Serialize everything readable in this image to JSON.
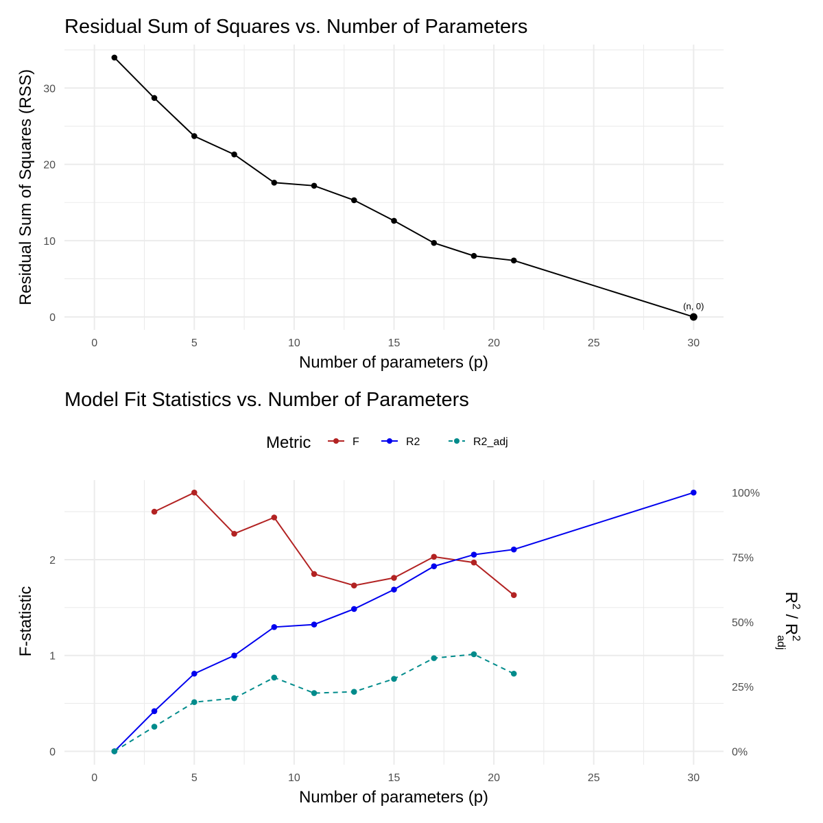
{
  "chart_data": [
    {
      "type": "line",
      "title": "Residual Sum of Squares vs. Number of Parameters",
      "xlabel": "Number of parameters (p)",
      "ylabel": "Residual Sum of Squares (RSS)",
      "xlim": [
        -1.5,
        31.5
      ],
      "ylim": [
        -1.7,
        35.7
      ],
      "x_ticks": [
        0,
        5,
        10,
        15,
        20,
        25,
        30
      ],
      "y_ticks": [
        0,
        10,
        20,
        30
      ],
      "grid": true,
      "series": [
        {
          "color": "#000000",
          "x": [
            1,
            3,
            5,
            7,
            9,
            11,
            13,
            15,
            17,
            19,
            21,
            30
          ],
          "y": [
            34.0,
            28.7,
            23.7,
            21.3,
            17.6,
            17.2,
            15.3,
            12.6,
            9.7,
            8.0,
            7.4,
            0.0
          ]
        }
      ],
      "annotations": [
        {
          "text": "(n, 0)",
          "x": 30,
          "y": 0
        }
      ]
    },
    {
      "type": "line",
      "title": "Model Fit Statistics vs. Number of Parameters",
      "xlabel": "Number of parameters (p)",
      "ylabel": "F-statistic",
      "y2label_base": "R",
      "y2label_sup1": "2",
      "y2label_mid": " / R",
      "y2label_sup2": "2",
      "y2label_sub": "adj",
      "xlim": [
        -1.5,
        31.5
      ],
      "ylim": [
        -0.14,
        2.83
      ],
      "x_ticks": [
        0,
        5,
        10,
        15,
        20,
        25,
        30
      ],
      "y_ticks": [
        0,
        1,
        2
      ],
      "y2_ticks": [
        "0%",
        "25%",
        "50%",
        "75%",
        "100%"
      ],
      "y2_scale_max": 2.7,
      "grid": true,
      "legend": {
        "title": "Metric",
        "position": "top",
        "entries": [
          "F",
          "R2",
          "R2_adj"
        ]
      },
      "series": [
        {
          "name": "F",
          "color": "#b22222",
          "dashed": false,
          "axis": "left",
          "x": [
            3,
            5,
            7,
            9,
            11,
            13,
            15,
            17,
            19,
            21
          ],
          "y": [
            2.5,
            2.7,
            2.27,
            2.44,
            1.85,
            1.73,
            1.81,
            2.03,
            1.97,
            1.63
          ]
        },
        {
          "name": "R2",
          "color": "#0000ee",
          "dashed": false,
          "axis": "right",
          "x": [
            1,
            3,
            5,
            7,
            9,
            11,
            13,
            15,
            17,
            19,
            21,
            30
          ],
          "y": [
            0.0,
            0.155,
            0.3,
            0.37,
            0.48,
            0.49,
            0.55,
            0.625,
            0.715,
            0.76,
            0.78,
            1.0
          ]
        },
        {
          "name": "R2_adj",
          "color": "#008b8b",
          "dashed": true,
          "axis": "right",
          "x": [
            1,
            3,
            5,
            7,
            9,
            11,
            13,
            15,
            17,
            19,
            21
          ],
          "y": [
            0.0,
            0.095,
            0.19,
            0.205,
            0.285,
            0.225,
            0.23,
            0.28,
            0.36,
            0.375,
            0.3
          ]
        }
      ]
    }
  ]
}
